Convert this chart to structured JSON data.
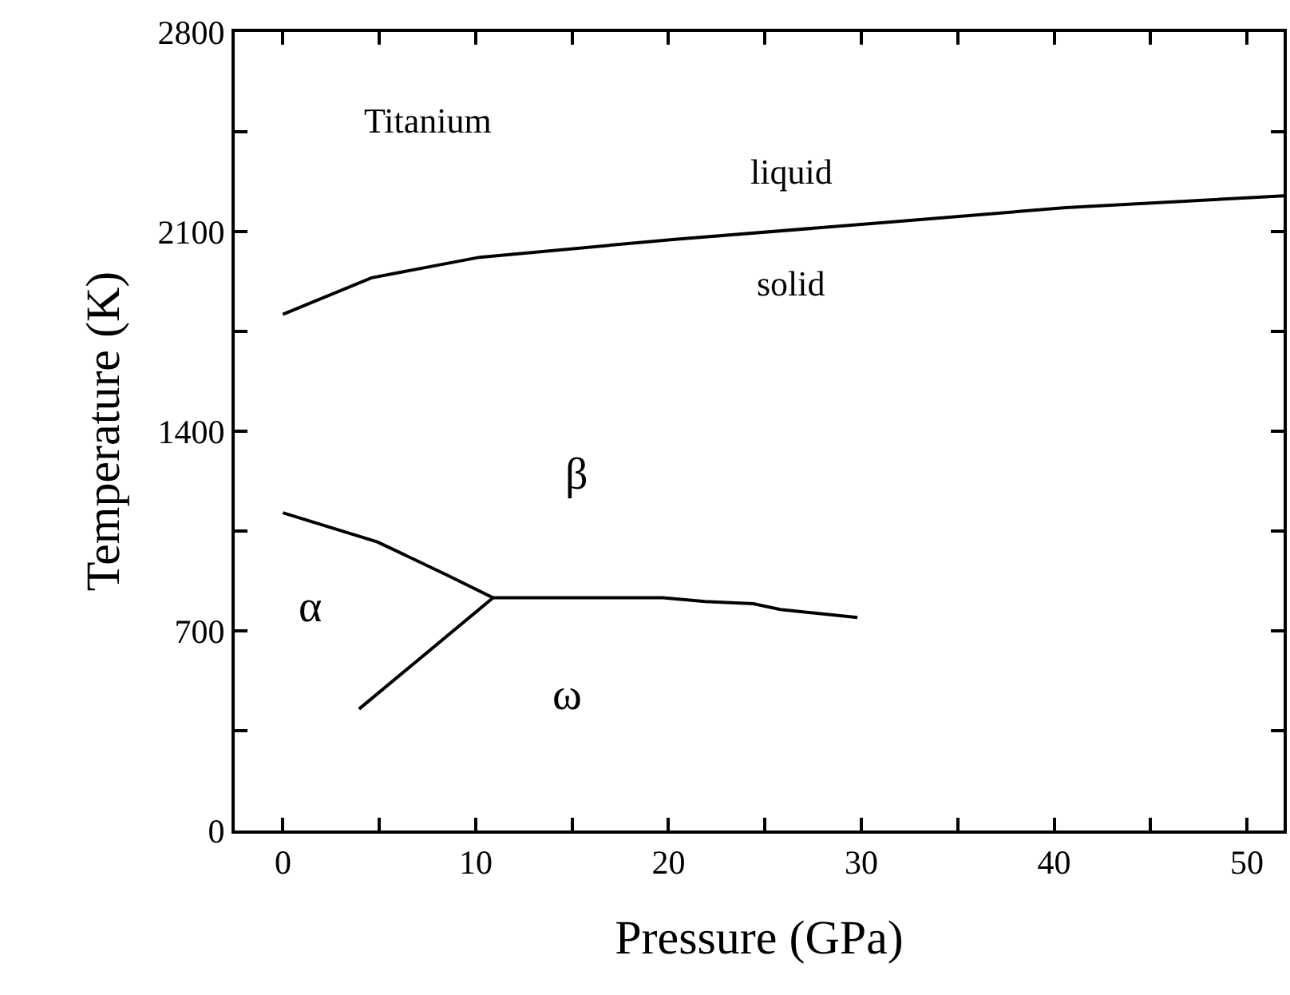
{
  "chart_data": {
    "type": "line",
    "xlabel": "Pressure (GPa)",
    "ylabel": "Temperature (K)",
    "series": [
      {
        "color": "#000000",
        "x": [
          0,
          4.6,
          10.2,
          20.2,
          30.5,
          40.6,
          51.9
        ],
        "values": [
          1810,
          1938,
          2010,
          2072,
          2128,
          2184,
          2225
        ]
      },
      {
        "color": "#000000",
        "x": [
          0,
          4.9,
          8.5,
          10.9,
          19.7,
          21.9,
          24.4,
          25.8,
          29.8
        ],
        "values": [
          1114,
          1012,
          896,
          816,
          816,
          803,
          795,
          775,
          747
        ]
      },
      {
        "color": "#000000",
        "x": [
          3.95,
          10.9
        ],
        "values": [
          426,
          816
        ]
      }
    ],
    "annotations": [
      "Titanium",
      "liquid",
      "solid",
      "β",
      "α",
      "ω"
    ],
    "xlim": [
      -2.5,
      51.9
    ],
    "ylim": [
      0,
      2800
    ],
    "xticks": [
      0,
      {
        "value": 5,
        "label": null
      },
      10,
      {
        "value": 15,
        "label": null
      },
      20,
      {
        "value": 25,
        "label": null
      },
      30,
      {
        "value": 35,
        "label": null
      },
      40,
      {
        "value": 45,
        "label": null
      },
      50
    ],
    "yticks": [
      0,
      {
        "value": 350,
        "label": null
      },
      700,
      {
        "value": 1050,
        "label": null
      },
      1400,
      {
        "value": 1750,
        "label": null
      },
      2100,
      {
        "value": 2450,
        "label": null
      },
      2800
    ],
    "marker": "none",
    "line_style": "solid"
  }
}
